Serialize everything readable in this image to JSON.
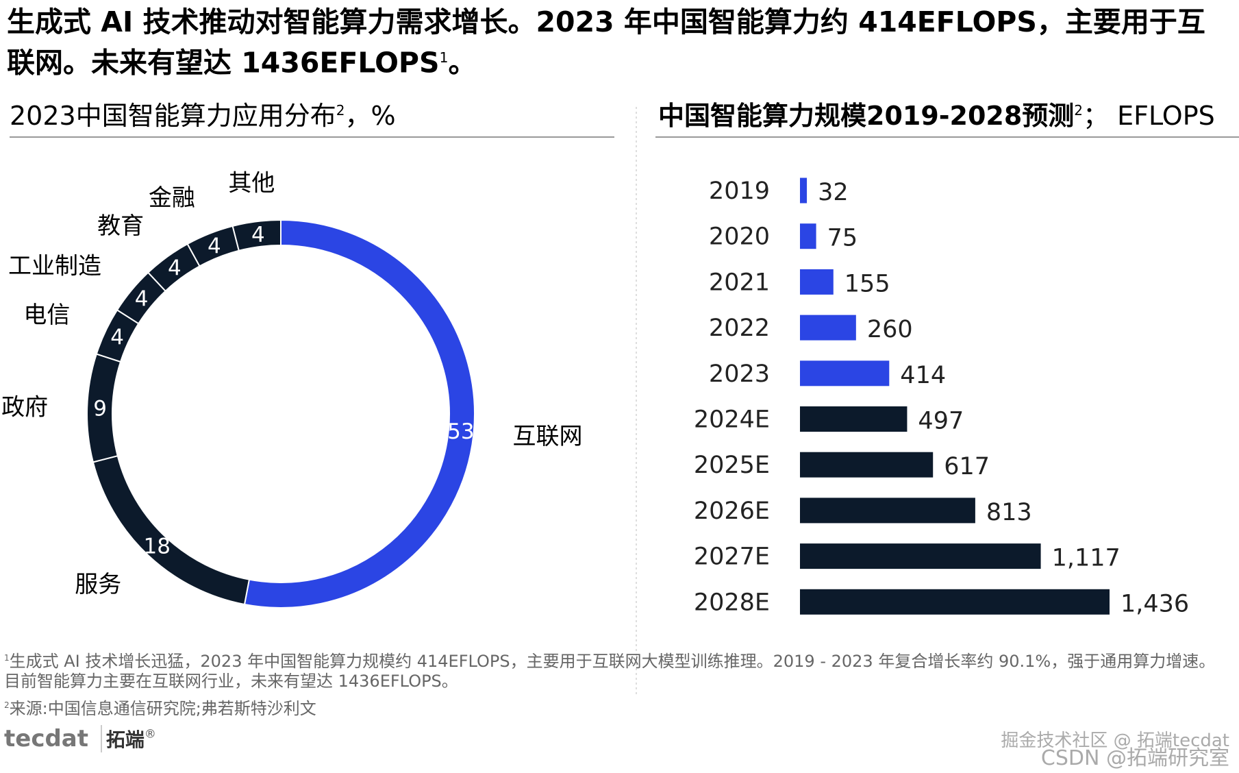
{
  "header": {
    "title": "生成式 AI 技术推动对智能算力需求增长。2023 年中国智能算力约 414EFLOPS，主要用于互联网。未来有望达 1436EFLOPS",
    "title_note": "1",
    "title_end": "。"
  },
  "chart_data": [
    {
      "type": "donut",
      "title": "2023中国智能算力应用分布",
      "title_note": "2",
      "title_unit": "，%",
      "categories": [
        "互联网",
        "服务",
        "政府",
        "电信",
        "工业制造",
        "教育",
        "金融",
        "其他"
      ],
      "values": [
        53,
        18,
        9,
        4,
        4,
        4,
        4,
        4
      ],
      "colors": [
        "#2b45e4",
        "#0c1a2b",
        "#0c1a2b",
        "#0c1a2b",
        "#0c1a2b",
        "#0c1a2b",
        "#0c1a2b",
        "#0c1a2b"
      ]
    },
    {
      "type": "hbar",
      "title": "中国智能算力规模2019-2028预测",
      "title_note": "2",
      "title_unit": "； EFLOPS",
      "categories": [
        "2019",
        "2020",
        "2021",
        "2022",
        "2023",
        "2024E",
        "2025E",
        "2026E",
        "2027E",
        "2028E"
      ],
      "values": [
        32,
        75,
        155,
        260,
        414,
        497,
        617,
        813,
        1117,
        1436
      ],
      "value_labels": [
        "32",
        "75",
        "155",
        "260",
        "414",
        "497",
        "617",
        "813",
        "1,117",
        "1,436"
      ],
      "colors": [
        "#2b45e4",
        "#2b45e4",
        "#2b45e4",
        "#2b45e4",
        "#2b45e4",
        "#0c1a2b",
        "#0c1a2b",
        "#0c1a2b",
        "#0c1a2b",
        "#0c1a2b"
      ]
    }
  ],
  "footnotes": [
    {
      "note": "1",
      "text": "生成式 AI 技术增长迅猛，2023 年中国智能算力规模约 414EFLOPS，主要用于互联网大模型训练推理。2019 - 2023 年复合增长率约 90.1%，强于通用算力增速。目前智能算力主要在互联网行业，未来有望达 1436EFLOPS。"
    },
    {
      "note": "2",
      "text": "来源:中国信息通信研究院;弗若斯特沙利文"
    }
  ],
  "logo": {
    "brand": "tecdat",
    "name": "拓端",
    "mark": "®"
  },
  "watermark": [
    "掘金技术社区 @ 拓端tecdat",
    "CSDN @拓端研究室"
  ]
}
